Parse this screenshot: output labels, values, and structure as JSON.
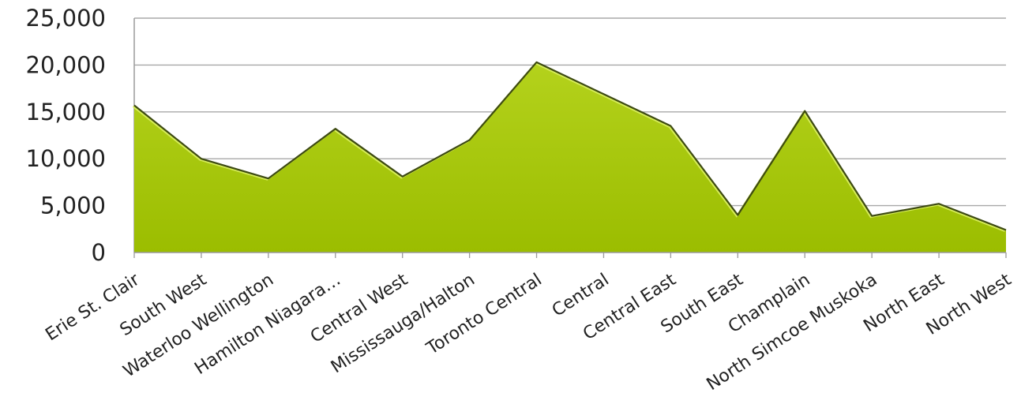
{
  "chart_data": {
    "type": "area",
    "categories": [
      "Erie St. Clair",
      "South West",
      "Waterloo Wellington",
      "Hamilton Niagara…",
      "Central West",
      "Mississauga/Halton",
      "Toronto Central",
      "Central",
      "Central East",
      "South East",
      "Champlain",
      "North Simcoe Muskoka",
      "North East",
      "North West"
    ],
    "values": [
      15700,
      10000,
      7900,
      13200,
      8100,
      12000,
      20300,
      16900,
      13500,
      4000,
      15100,
      3900,
      5200,
      2400
    ],
    "ylim": [
      0,
      25000
    ],
    "yticks": [
      0,
      5000,
      10000,
      15000,
      20000,
      25000
    ],
    "ytick_labels": [
      "0",
      "5,000",
      "10,000",
      "15,000",
      "20,000",
      "25,000"
    ],
    "grid": true,
    "legend": "none",
    "colors": {
      "fill": "#a4c400",
      "fill_top": "#b4d21c",
      "outline": "#3d4a12",
      "grid": "#a8a8a8",
      "axis": "#9a9a9a",
      "text": "#222222"
    }
  }
}
